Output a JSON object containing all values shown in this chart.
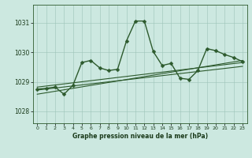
{
  "xlabel": "Graphe pression niveau de la mer (hPa)",
  "bg_color": "#cce8e0",
  "line_color": "#2d5a2d",
  "grid_color": "#9dc4b8",
  "xlim": [
    -0.5,
    23.5
  ],
  "ylim": [
    1027.6,
    1031.6
  ],
  "yticks": [
    1028,
    1029,
    1030,
    1031
  ],
  "xticks": [
    0,
    1,
    2,
    3,
    4,
    5,
    6,
    7,
    8,
    9,
    10,
    11,
    12,
    13,
    14,
    15,
    16,
    17,
    18,
    19,
    20,
    21,
    22,
    23
  ],
  "data_x": [
    0,
    1,
    2,
    3,
    4,
    5,
    6,
    7,
    8,
    9,
    10,
    11,
    12,
    13,
    14,
    15,
    16,
    17,
    18,
    19,
    20,
    21,
    22,
    23
  ],
  "data_y": [
    1028.75,
    1028.78,
    1028.82,
    1028.58,
    1028.88,
    1029.65,
    1029.72,
    1029.47,
    1029.38,
    1029.42,
    1030.38,
    1031.05,
    1031.05,
    1030.02,
    1029.55,
    1029.62,
    1029.12,
    1029.08,
    1029.38,
    1030.12,
    1030.05,
    1029.92,
    1029.82,
    1029.68
  ],
  "trend1_x": [
    0,
    23
  ],
  "trend1_y": [
    1028.72,
    1029.52
  ],
  "trend2_x": [
    0,
    23
  ],
  "trend2_y": [
    1028.58,
    1029.72
  ],
  "trend3_x": [
    0,
    23
  ],
  "trend3_y": [
    1028.82,
    1029.65
  ],
  "marker_size": 2.5,
  "linewidth": 1.0,
  "trend_linewidth": 0.8
}
